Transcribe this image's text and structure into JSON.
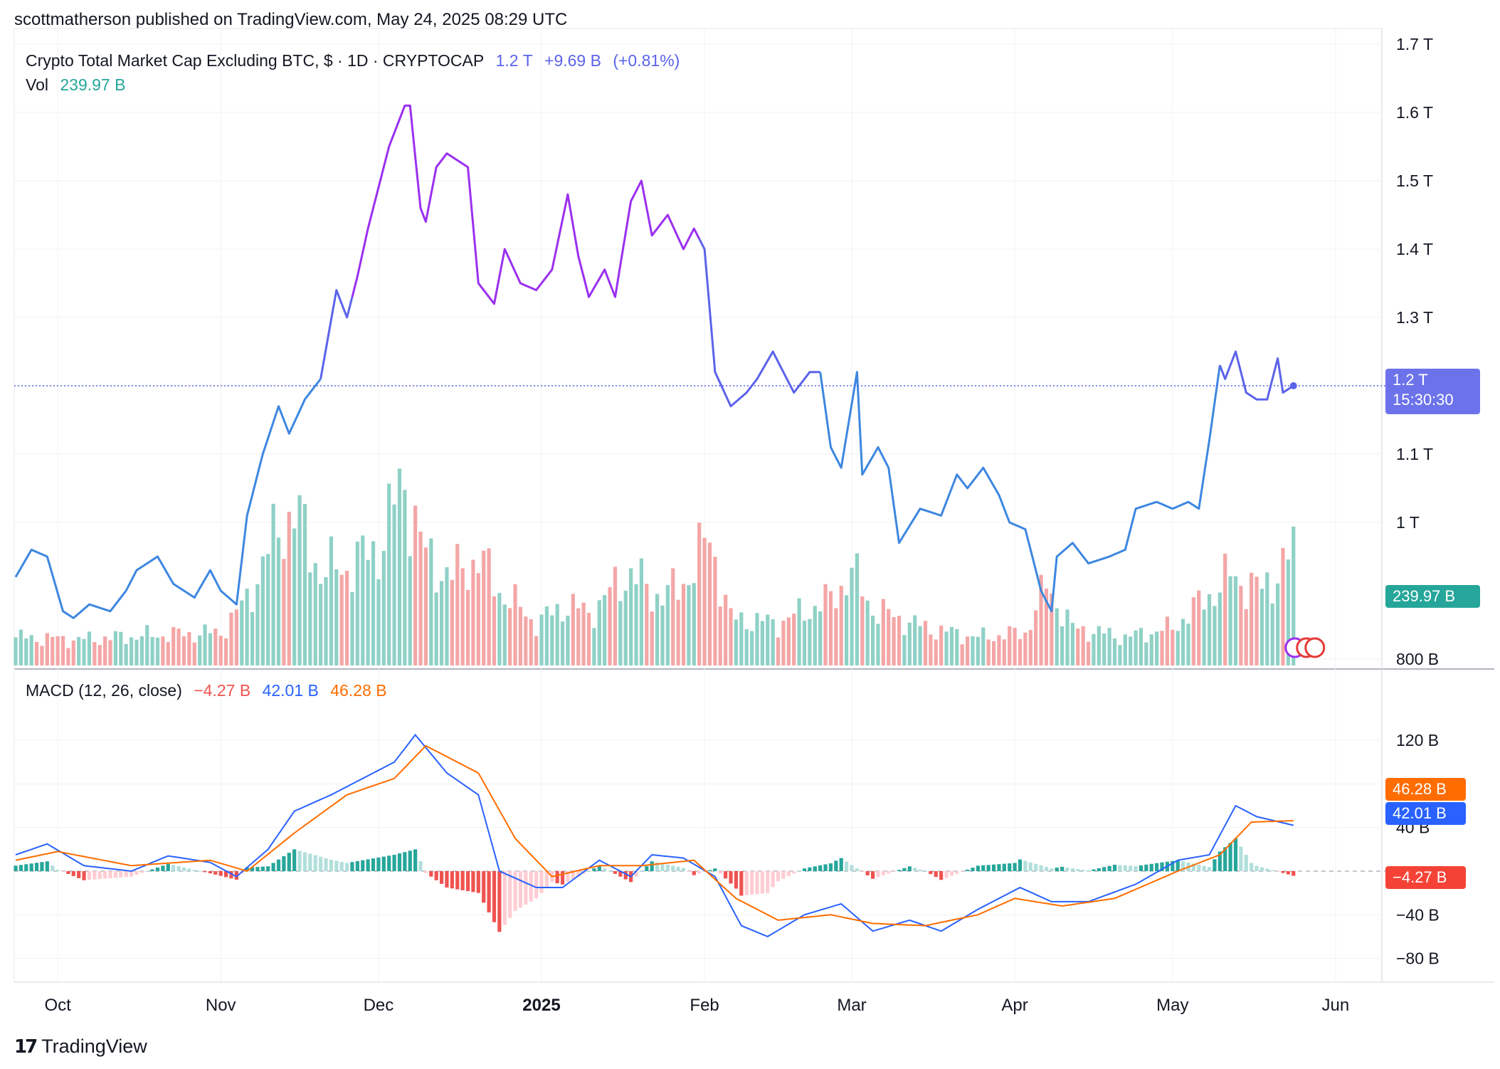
{
  "header": {
    "publish_line": "scottmatherson published on TradingView.com, May 24, 2025 08:29 UTC"
  },
  "legend": {
    "symbol": "Crypto Total Market Cap Excluding BTC, $ · 1D · CRYPTOCAP",
    "last": "1.2 T",
    "change": "+9.69 B",
    "change_pct": "(+0.81%)",
    "vol_label": "Vol",
    "vol_value": "239.97 B",
    "macd_label": "MACD (12, 26, close)",
    "macd_hist": "−4.27 B",
    "macd_line": "42.01 B",
    "macd_signal": "46.28 B"
  },
  "price_tag": {
    "value": "1.2 T",
    "countdown": "15:30:30"
  },
  "vol_tag": "239.97 B",
  "macd_tags": {
    "signal": "46.28 B",
    "macd": "42.01 B",
    "hist": "−4.27 B"
  },
  "colors": {
    "purple": "#9b30f0",
    "blue": "#3d87e0",
    "indigo": "#5b63ea",
    "vol_up": "#8fd1c6",
    "vol_down": "#f4a6a6",
    "macd_line": "#2962ff",
    "signal_line": "#ff6d00",
    "hist_up_strong": "#26a69a",
    "hist_up_weak": "#b2dfdb",
    "hist_down_strong": "#ef5350",
    "hist_down_weak": "#ffcdd2",
    "price_tag_bg": "#6c73ea",
    "vol_tag_bg": "#26a69a",
    "signal_tag_bg": "#ff6d00",
    "macd_tag_bg": "#2962ff",
    "hist_tag_bg": "#f44336"
  },
  "footer": {
    "brand": "TradingView",
    "logo_icon": "tradingview-logo-icon"
  },
  "chart_data": [
    {
      "type": "line",
      "title": "Crypto Total Market Cap Excluding BTC",
      "x_ticks": [
        "Oct",
        "Nov",
        "Dec",
        "2025",
        "Feb",
        "Mar",
        "Apr",
        "May",
        "Jun"
      ],
      "y_ticks": [
        "800 B",
        "1 T",
        "1.1 T",
        "1.2 T",
        "1.3 T",
        "1.4 T",
        "1.5 T",
        "1.6 T",
        "1.7 T"
      ],
      "ylim": [
        0.8,
        1.7
      ],
      "x_start": "2024-09-23",
      "series": [
        {
          "name": "Close",
          "unit": "T",
          "keypoints": [
            [
              "2024-09-23",
              0.92
            ],
            [
              "2024-09-26",
              0.96
            ],
            [
              "2024-09-29",
              0.95
            ],
            [
              "2024-10-02",
              0.87
            ],
            [
              "2024-10-04",
              0.86
            ],
            [
              "2024-10-07",
              0.88
            ],
            [
              "2024-10-11",
              0.87
            ],
            [
              "2024-10-14",
              0.9
            ],
            [
              "2024-10-16",
              0.93
            ],
            [
              "2024-10-20",
              0.95
            ],
            [
              "2024-10-23",
              0.91
            ],
            [
              "2024-10-27",
              0.89
            ],
            [
              "2024-10-30",
              0.93
            ],
            [
              "2024-11-01",
              0.9
            ],
            [
              "2024-11-04",
              0.88
            ],
            [
              "2024-11-06",
              1.01
            ],
            [
              "2024-11-09",
              1.1
            ],
            [
              "2024-11-12",
              1.17
            ],
            [
              "2024-11-14",
              1.13
            ],
            [
              "2024-11-17",
              1.18
            ],
            [
              "2024-11-20",
              1.21
            ],
            [
              "2024-11-23",
              1.34
            ],
            [
              "2024-11-25",
              1.3
            ],
            [
              "2024-11-27",
              1.36
            ],
            [
              "2024-11-29",
              1.43
            ],
            [
              "2024-12-03",
              1.55
            ],
            [
              "2024-12-06",
              1.61
            ],
            [
              "2024-12-07",
              1.61
            ],
            [
              "2024-12-09",
              1.46
            ],
            [
              "2024-12-10",
              1.44
            ],
            [
              "2024-12-12",
              1.52
            ],
            [
              "2024-12-14",
              1.54
            ],
            [
              "2024-12-16",
              1.53
            ],
            [
              "2024-12-18",
              1.52
            ],
            [
              "2024-12-20",
              1.35
            ],
            [
              "2024-12-23",
              1.32
            ],
            [
              "2024-12-25",
              1.4
            ],
            [
              "2024-12-28",
              1.35
            ],
            [
              "2024-12-31",
              1.34
            ],
            [
              "2025-01-03",
              1.37
            ],
            [
              "2025-01-06",
              1.48
            ],
            [
              "2025-01-08",
              1.39
            ],
            [
              "2025-01-10",
              1.33
            ],
            [
              "2025-01-13",
              1.37
            ],
            [
              "2025-01-15",
              1.33
            ],
            [
              "2025-01-18",
              1.47
            ],
            [
              "2025-01-20",
              1.5
            ],
            [
              "2025-01-22",
              1.42
            ],
            [
              "2025-01-25",
              1.45
            ],
            [
              "2025-01-28",
              1.4
            ],
            [
              "2025-01-30",
              1.43
            ],
            [
              "2025-02-01",
              1.4
            ],
            [
              "2025-02-03",
              1.22
            ],
            [
              "2025-02-06",
              1.17
            ],
            [
              "2025-02-09",
              1.19
            ],
            [
              "2025-02-11",
              1.21
            ],
            [
              "2025-02-14",
              1.25
            ],
            [
              "2025-02-18",
              1.19
            ],
            [
              "2025-02-21",
              1.22
            ],
            [
              "2025-02-23",
              1.22
            ],
            [
              "2025-02-25",
              1.11
            ],
            [
              "2025-02-27",
              1.08
            ],
            [
              "2025-03-02",
              1.22
            ],
            [
              "2025-03-03",
              1.07
            ],
            [
              "2025-03-06",
              1.11
            ],
            [
              "2025-03-08",
              1.08
            ],
            [
              "2025-03-10",
              0.97
            ],
            [
              "2025-03-14",
              1.02
            ],
            [
              "2025-03-18",
              1.01
            ],
            [
              "2025-03-21",
              1.07
            ],
            [
              "2025-03-23",
              1.05
            ],
            [
              "2025-03-26",
              1.08
            ],
            [
              "2025-03-29",
              1.04
            ],
            [
              "2025-03-31",
              1.0
            ],
            [
              "2025-04-03",
              0.99
            ],
            [
              "2025-04-06",
              0.9
            ],
            [
              "2025-04-08",
              0.87
            ],
            [
              "2025-04-09",
              0.95
            ],
            [
              "2025-04-12",
              0.97
            ],
            [
              "2025-04-15",
              0.94
            ],
            [
              "2025-04-19",
              0.95
            ],
            [
              "2025-04-22",
              0.96
            ],
            [
              "2025-04-24",
              1.02
            ],
            [
              "2025-04-28",
              1.03
            ],
            [
              "2025-05-01",
              1.02
            ],
            [
              "2025-05-04",
              1.03
            ],
            [
              "2025-05-06",
              1.02
            ],
            [
              "2025-05-08",
              1.12
            ],
            [
              "2025-05-10",
              1.23
            ],
            [
              "2025-05-11",
              1.21
            ],
            [
              "2025-05-13",
              1.25
            ],
            [
              "2025-05-15",
              1.19
            ],
            [
              "2025-05-17",
              1.18
            ],
            [
              "2025-05-19",
              1.18
            ],
            [
              "2025-05-21",
              1.24
            ],
            [
              "2025-05-22",
              1.19
            ],
            [
              "2025-05-24",
              1.2
            ]
          ]
        }
      ]
    },
    {
      "type": "bar",
      "title": "Vol",
      "unit": "B",
      "ylim": [
        0,
        540
      ],
      "last_value": 239.97,
      "series": [
        {
          "name": "Vol",
          "keypoints": [
            [
              "2024-09-23",
              60
            ],
            [
              "2024-10-05",
              55
            ],
            [
              "2024-10-20",
              65
            ],
            [
              "2024-11-01",
              70
            ],
            [
              "2024-11-06",
              140
            ],
            [
              "2024-11-12",
              290
            ],
            [
              "2024-11-15",
              330
            ],
            [
              "2024-11-20",
              200
            ],
            [
              "2024-11-25",
              210
            ],
            [
              "2024-12-01",
              250
            ],
            [
              "2024-12-04",
              340
            ],
            [
              "2024-12-06",
              390
            ],
            [
              "2024-12-10",
              230
            ],
            [
              "2024-12-15",
              190
            ],
            [
              "2024-12-20",
              230
            ],
            [
              "2024-12-24",
              160
            ],
            [
              "2024-12-31",
              90
            ],
            [
              "2025-01-06",
              130
            ],
            [
              "2025-01-10",
              110
            ],
            [
              "2025-01-18",
              200
            ],
            [
              "2025-01-22",
              150
            ],
            [
              "2025-01-27",
              160
            ],
            [
              "2025-02-02",
              270
            ],
            [
              "2025-02-06",
              100
            ],
            [
              "2025-02-15",
              90
            ],
            [
              "2025-02-25",
              140
            ],
            [
              "2025-03-01",
              200
            ],
            [
              "2025-03-05",
              120
            ],
            [
              "2025-03-15",
              80
            ],
            [
              "2025-03-25",
              60
            ],
            [
              "2025-04-03",
              70
            ],
            [
              "2025-04-07",
              170
            ],
            [
              "2025-04-12",
              80
            ],
            [
              "2025-04-22",
              60
            ],
            [
              "2025-05-01",
              80
            ],
            [
              "2025-05-08",
              150
            ],
            [
              "2025-05-12",
              190
            ],
            [
              "2025-05-18",
              160
            ],
            [
              "2025-05-24",
              240
            ]
          ]
        }
      ]
    },
    {
      "type": "line",
      "title": "MACD (12, 26, close)",
      "unit": "B",
      "ylim": [
        -80,
        130
      ],
      "y_ticks": [
        "−80 B",
        "−40 B",
        "0",
        "40 B",
        "80 B",
        "120 B"
      ],
      "series": [
        {
          "name": "MACD",
          "keypoints": [
            [
              "2024-09-23",
              15
            ],
            [
              "2024-09-29",
              25
            ],
            [
              "2024-10-06",
              5
            ],
            [
              "2024-10-15",
              0
            ],
            [
              "2024-10-22",
              14
            ],
            [
              "2024-10-30",
              8
            ],
            [
              "2024-11-04",
              -5
            ],
            [
              "2024-11-10",
              20
            ],
            [
              "2024-11-15",
              55
            ],
            [
              "2024-11-22",
              70
            ],
            [
              "2024-11-28",
              85
            ],
            [
              "2024-12-04",
              100
            ],
            [
              "2024-12-08",
              125
            ],
            [
              "2024-12-14",
              90
            ],
            [
              "2024-12-20",
              70
            ],
            [
              "2024-12-24",
              0
            ],
            [
              "2024-12-31",
              -15
            ],
            [
              "2025-01-05",
              -15
            ],
            [
              "2025-01-12",
              10
            ],
            [
              "2025-01-18",
              -5
            ],
            [
              "2025-01-22",
              15
            ],
            [
              "2025-01-28",
              12
            ],
            [
              "2025-02-03",
              -5
            ],
            [
              "2025-02-08",
              -50
            ],
            [
              "2025-02-13",
              -60
            ],
            [
              "2025-02-20",
              -40
            ],
            [
              "2025-02-27",
              -30
            ],
            [
              "2025-03-05",
              -55
            ],
            [
              "2025-03-12",
              -45
            ],
            [
              "2025-03-18",
              -55
            ],
            [
              "2025-03-25",
              -35
            ],
            [
              "2025-04-02",
              -15
            ],
            [
              "2025-04-08",
              -28
            ],
            [
              "2025-04-15",
              -28
            ],
            [
              "2025-04-24",
              -12
            ],
            [
              "2025-05-02",
              10
            ],
            [
              "2025-05-08",
              15
            ],
            [
              "2025-05-13",
              60
            ],
            [
              "2025-05-17",
              50
            ],
            [
              "2025-05-24",
              42.01
            ]
          ]
        },
        {
          "name": "Signal",
          "keypoints": [
            [
              "2024-09-23",
              10
            ],
            [
              "2024-10-01",
              18
            ],
            [
              "2024-10-15",
              5
            ],
            [
              "2024-10-30",
              10
            ],
            [
              "2024-11-06",
              0
            ],
            [
              "2024-11-15",
              35
            ],
            [
              "2024-11-25",
              70
            ],
            [
              "2024-12-04",
              85
            ],
            [
              "2024-12-10",
              115
            ],
            [
              "2024-12-20",
              90
            ],
            [
              "2024-12-27",
              30
            ],
            [
              "2025-01-03",
              -5
            ],
            [
              "2025-01-12",
              5
            ],
            [
              "2025-01-20",
              5
            ],
            [
              "2025-01-30",
              10
            ],
            [
              "2025-02-07",
              -25
            ],
            [
              "2025-02-15",
              -45
            ],
            [
              "2025-02-25",
              -40
            ],
            [
              "2025-03-05",
              -48
            ],
            [
              "2025-03-15",
              -50
            ],
            [
              "2025-03-25",
              -40
            ],
            [
              "2025-04-01",
              -25
            ],
            [
              "2025-04-10",
              -32
            ],
            [
              "2025-04-20",
              -25
            ],
            [
              "2025-05-02",
              0
            ],
            [
              "2025-05-10",
              15
            ],
            [
              "2025-05-16",
              45
            ],
            [
              "2025-05-24",
              46.28
            ]
          ]
        }
      ]
    }
  ]
}
